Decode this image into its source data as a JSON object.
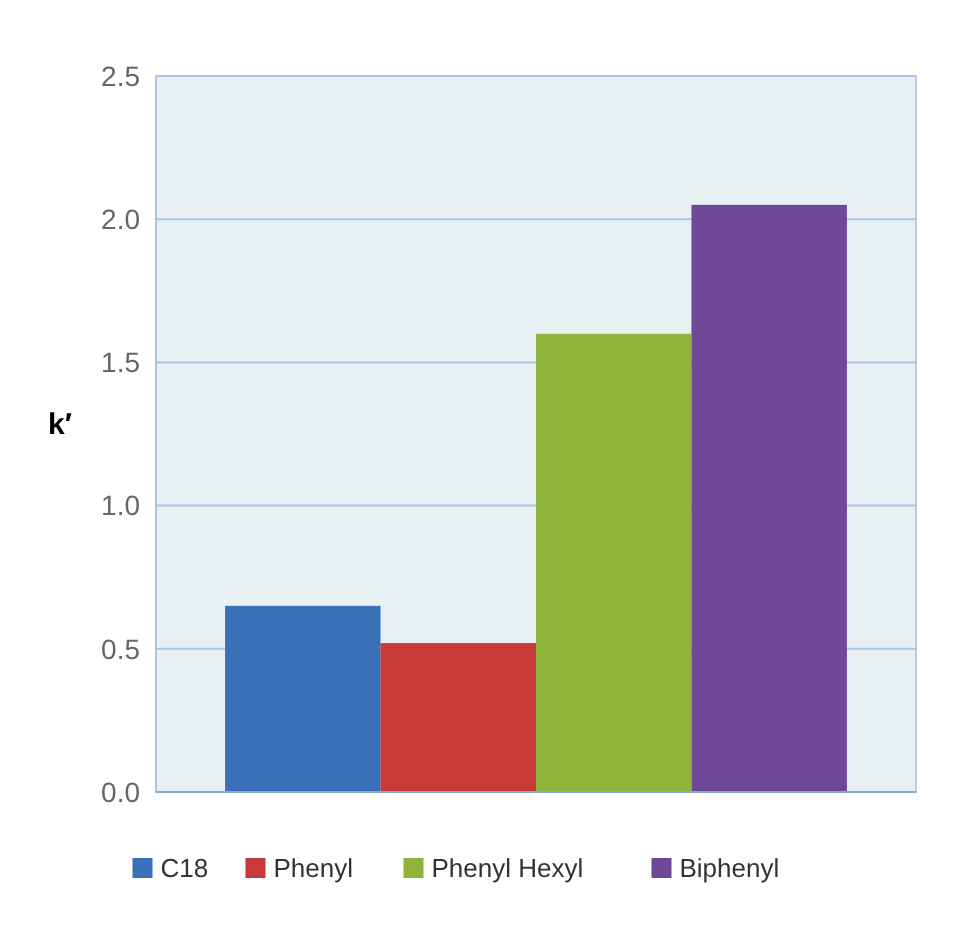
{
  "chart_data": {
    "type": "bar",
    "ylabel": "k′",
    "categories": [
      null
    ],
    "series": [
      {
        "name": "C18",
        "color": "#3a70b8",
        "values": [
          0.65
        ]
      },
      {
        "name": "Phenyl",
        "color": "#c83a36",
        "values": [
          0.52
        ]
      },
      {
        "name": "Phenyl Hexyl",
        "color": "#8fb43c",
        "values": [
          1.6
        ]
      },
      {
        "name": "Biphenyl",
        "color": "#70489a",
        "values": [
          2.05
        ]
      }
    ],
    "ylim": [
      0,
      2.5
    ],
    "yticks": [
      {
        "value": 0,
        "label": "0.0"
      },
      0.5,
      {
        "value": 1,
        "label": "1.0"
      },
      1.5,
      {
        "value": 2,
        "label": "2.0"
      },
      2.5
    ],
    "grid": "y",
    "legend": "bottom"
  }
}
